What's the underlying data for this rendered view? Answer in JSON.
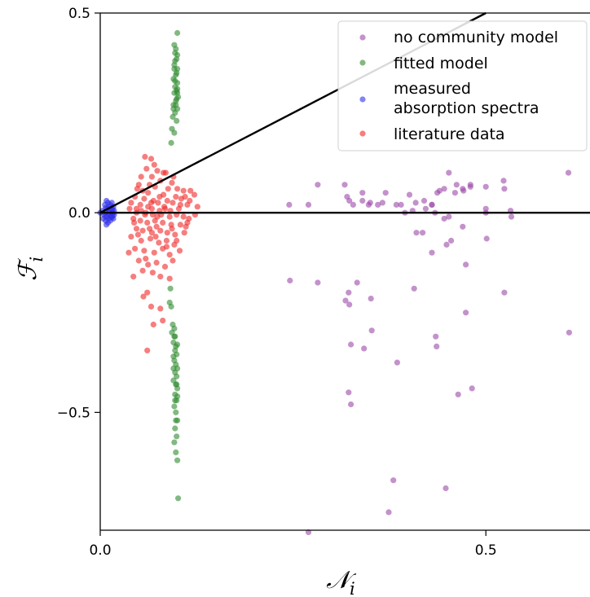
{
  "chart_data": {
    "type": "scatter",
    "title": "",
    "xlabel": "𝒩",
    "xlabel_sub": "i",
    "ylabel": "ℱ",
    "ylabel_sub": "i",
    "xlim": [
      0.0,
      0.635
    ],
    "ylim": [
      -0.795,
      0.5
    ],
    "xticks": [
      {
        "v": 0.0,
        "label": "0.0"
      },
      {
        "v": 0.5,
        "label": "0.5"
      }
    ],
    "yticks": [
      {
        "v": 0.5,
        "label": "0.5"
      },
      {
        "v": 0.0,
        "label": "0.0"
      },
      {
        "v": -0.5,
        "label": "−0.5"
      }
    ],
    "grid": false,
    "legend_position": "top-right",
    "reference_lines": [
      {
        "name": "zero-line",
        "points": [
          [
            0.0,
            0.0
          ],
          [
            0.635,
            0.0
          ]
        ]
      },
      {
        "name": "diagonal-line",
        "points": [
          [
            0.0,
            0.0
          ],
          [
            0.5,
            0.5
          ]
        ]
      }
    ],
    "series": [
      {
        "name": "no community model",
        "color": "#9b4aa8",
        "points": [
          [
            0.245,
            0.02
          ],
          [
            0.246,
            -0.17
          ],
          [
            0.27,
            -0.8
          ],
          [
            0.27,
            0.02
          ],
          [
            0.282,
            0.07
          ],
          [
            0.282,
            -0.175
          ],
          [
            0.317,
            0.07
          ],
          [
            0.318,
            -0.22
          ],
          [
            0.32,
            0.04
          ],
          [
            0.322,
            -0.2
          ],
          [
            0.323,
            0.03
          ],
          [
            0.323,
            -0.23
          ],
          [
            0.322,
            -0.45
          ],
          [
            0.325,
            -0.48
          ],
          [
            0.325,
            -0.33
          ],
          [
            0.328,
            0.02
          ],
          [
            0.333,
            -0.175
          ],
          [
            0.34,
            0.05
          ],
          [
            0.342,
            -0.34
          ],
          [
            0.348,
            0.02
          ],
          [
            0.35,
            0.025
          ],
          [
            0.351,
            -0.215
          ],
          [
            0.352,
            -0.295
          ],
          [
            0.37,
            0.05
          ],
          [
            0.374,
            -0.75
          ],
          [
            0.38,
            -0.67
          ],
          [
            0.384,
            0.02
          ],
          [
            0.385,
            -0.375
          ],
          [
            0.395,
            0.0
          ],
          [
            0.401,
            0.045
          ],
          [
            0.405,
            0.005
          ],
          [
            0.407,
            -0.19
          ],
          [
            0.409,
            0.025
          ],
          [
            0.41,
            -0.05
          ],
          [
            0.42,
            0.03
          ],
          [
            0.43,
            0.02
          ],
          [
            0.43,
            -0.1
          ],
          [
            0.418,
            -0.05
          ],
          [
            0.43,
            0.02
          ],
          [
            0.434,
            0.0
          ],
          [
            0.435,
            -0.31
          ],
          [
            0.436,
            -0.335
          ],
          [
            0.437,
            0.05
          ],
          [
            0.44,
            0.055
          ],
          [
            0.446,
            0.06
          ],
          [
            0.446,
            -0.015
          ],
          [
            0.448,
            -0.69
          ],
          [
            0.449,
            -0.08
          ],
          [
            0.452,
            0.1
          ],
          [
            0.455,
            -0.07
          ],
          [
            0.462,
            0.07
          ],
          [
            0.464,
            -0.455
          ],
          [
            0.47,
            0.06
          ],
          [
            0.471,
            0.055
          ],
          [
            0.47,
            -0.035
          ],
          [
            0.474,
            -0.13
          ],
          [
            0.474,
            -0.25
          ],
          [
            0.48,
            0.07
          ],
          [
            0.482,
            -0.44
          ],
          [
            0.5,
            0.065
          ],
          [
            0.5,
            0.0
          ],
          [
            0.501,
            -0.065
          ],
          [
            0.523,
            0.08
          ],
          [
            0.524,
            0.06
          ],
          [
            0.524,
            -0.2
          ],
          [
            0.532,
            0.005
          ],
          [
            0.533,
            -0.01
          ],
          [
            0.607,
            0.1
          ],
          [
            0.608,
            -0.3
          ],
          [
            0.39,
            0.02
          ],
          [
            0.366,
            0.025
          ],
          [
            0.422,
            0.01
          ],
          [
            0.36,
            0.02
          ],
          [
            0.34,
            0.03
          ],
          [
            0.452,
            -0.01
          ],
          [
            0.5,
            0.01
          ],
          [
            0.48,
            0.065
          ],
          [
            0.46,
            0.05
          ]
        ]
      },
      {
        "name": "fitted model",
        "color": "#2e8b2e",
        "points": [
          [
            0.1,
            0.45
          ],
          [
            0.098,
            0.41
          ],
          [
            0.097,
            0.4
          ],
          [
            0.099,
            0.385
          ],
          [
            0.096,
            0.37
          ],
          [
            0.1,
            0.36
          ],
          [
            0.098,
            0.345
          ],
          [
            0.095,
            0.335
          ],
          [
            0.1,
            0.325
          ],
          [
            0.097,
            0.315
          ],
          [
            0.099,
            0.305
          ],
          [
            0.096,
            0.3
          ],
          [
            0.101,
            0.29
          ],
          [
            0.098,
            0.28
          ],
          [
            0.095,
            0.27
          ],
          [
            0.1,
            0.26
          ],
          [
            0.097,
            0.25
          ],
          [
            0.094,
            0.24
          ],
          [
            0.099,
            0.23
          ],
          [
            0.093,
            0.21
          ],
          [
            0.096,
            0.2
          ],
          [
            0.092,
            0.175
          ],
          [
            0.097,
            0.33
          ],
          [
            0.099,
            0.35
          ],
          [
            0.1,
            0.31
          ],
          [
            0.096,
            0.36
          ],
          [
            0.1,
            0.395
          ],
          [
            0.096,
            0.42
          ],
          [
            0.097,
            0.38
          ],
          [
            0.1,
            0.3
          ],
          [
            0.098,
            0.27
          ],
          [
            0.095,
            0.26
          ],
          [
            0.099,
            0.285
          ],
          [
            0.091,
            -0.19
          ],
          [
            0.09,
            -0.225
          ],
          [
            0.092,
            -0.235
          ],
          [
            0.094,
            -0.28
          ],
          [
            0.096,
            -0.29
          ],
          [
            0.093,
            -0.3
          ],
          [
            0.097,
            -0.31
          ],
          [
            0.095,
            -0.325
          ],
          [
            0.098,
            -0.335
          ],
          [
            0.097,
            -0.345
          ],
          [
            0.099,
            -0.355
          ],
          [
            0.096,
            -0.37
          ],
          [
            0.098,
            -0.38
          ],
          [
            0.1,
            -0.39
          ],
          [
            0.097,
            -0.4
          ],
          [
            0.099,
            -0.41
          ],
          [
            0.095,
            -0.42
          ],
          [
            0.098,
            -0.43
          ],
          [
            0.1,
            -0.44
          ],
          [
            0.097,
            -0.455
          ],
          [
            0.099,
            -0.47
          ],
          [
            0.096,
            -0.485
          ],
          [
            0.098,
            -0.5
          ],
          [
            0.1,
            -0.52
          ],
          [
            0.097,
            -0.54
          ],
          [
            0.099,
            -0.56
          ],
          [
            0.096,
            -0.575
          ],
          [
            0.098,
            -0.6
          ],
          [
            0.1,
            -0.62
          ],
          [
            0.101,
            -0.715
          ],
          [
            0.095,
            -0.36
          ],
          [
            0.1,
            -0.33
          ],
          [
            0.097,
            -0.47
          ],
          [
            0.095,
            -0.39
          ],
          [
            0.1,
            -0.46
          ],
          [
            0.098,
            -0.52
          ],
          [
            0.096,
            -0.31
          ],
          [
            0.099,
            -0.43
          ]
        ]
      },
      {
        "name": "measured\nabsorption spectra",
        "color": "#3030e8",
        "points": [
          [
            0.0,
            0.0
          ],
          [
            0.003,
            0.005
          ],
          [
            0.005,
            -0.005
          ],
          [
            0.006,
            0.02
          ],
          [
            0.007,
            -0.02
          ],
          [
            0.008,
            0.03
          ],
          [
            0.008,
            -0.03
          ],
          [
            0.009,
            0.01
          ],
          [
            0.009,
            -0.01
          ],
          [
            0.01,
            0.025
          ],
          [
            0.01,
            -0.025
          ],
          [
            0.011,
            0.0
          ],
          [
            0.011,
            0.015
          ],
          [
            0.011,
            -0.015
          ],
          [
            0.012,
            0.005
          ],
          [
            0.012,
            -0.005
          ],
          [
            0.013,
            0.02
          ],
          [
            0.013,
            -0.02
          ],
          [
            0.014,
            0.01
          ],
          [
            0.014,
            -0.01
          ],
          [
            0.015,
            0.0
          ],
          [
            0.015,
            0.025
          ],
          [
            0.015,
            -0.012
          ],
          [
            0.016,
            0.008
          ],
          [
            0.016,
            -0.008
          ],
          [
            0.017,
            0.0
          ],
          [
            0.017,
            0.015
          ],
          [
            0.017,
            -0.015
          ],
          [
            0.018,
            0.005
          ],
          [
            0.018,
            -0.005
          ],
          [
            0.006,
            0.0
          ],
          [
            0.007,
            0.012
          ],
          [
            0.007,
            -0.01
          ],
          [
            0.004,
            -0.015
          ]
        ]
      },
      {
        "name": "literature data",
        "color": "#f02828",
        "points": [
          [
            0.058,
            0.14
          ],
          [
            0.066,
            0.135
          ],
          [
            0.07,
            0.12
          ],
          [
            0.074,
            0.105
          ],
          [
            0.085,
            0.1
          ],
          [
            0.06,
            0.11
          ],
          [
            0.053,
            0.09
          ],
          [
            0.082,
            0.1
          ],
          [
            0.067,
            0.09
          ],
          [
            0.093,
            0.075
          ],
          [
            0.078,
            0.08
          ],
          [
            0.064,
            0.07
          ],
          [
            0.05,
            0.07
          ],
          [
            0.071,
            0.065
          ],
          [
            0.088,
            0.06
          ],
          [
            0.1,
            0.06
          ],
          [
            0.108,
            0.055
          ],
          [
            0.117,
            0.055
          ],
          [
            0.122,
            0.045
          ],
          [
            0.11,
            0.04
          ],
          [
            0.098,
            0.04
          ],
          [
            0.082,
            0.045
          ],
          [
            0.062,
            0.05
          ],
          [
            0.045,
            0.04
          ],
          [
            0.057,
            0.035
          ],
          [
            0.069,
            0.03
          ],
          [
            0.075,
            0.025
          ],
          [
            0.087,
            0.03
          ],
          [
            0.094,
            0.025
          ],
          [
            0.104,
            0.02
          ],
          [
            0.113,
            0.02
          ],
          [
            0.126,
            0.015
          ],
          [
            0.052,
            0.02
          ],
          [
            0.04,
            0.025
          ],
          [
            0.047,
            0.01
          ],
          [
            0.062,
            0.015
          ],
          [
            0.067,
            0.01
          ],
          [
            0.077,
            0.005
          ],
          [
            0.084,
            0.01
          ],
          [
            0.091,
            0.005
          ],
          [
            0.047,
            0.0
          ],
          [
            0.053,
            0.005
          ],
          [
            0.058,
            -0.005
          ],
          [
            0.068,
            -0.005
          ],
          [
            0.079,
            -0.005
          ],
          [
            0.09,
            -0.01
          ],
          [
            0.099,
            -0.005
          ],
          [
            0.108,
            -0.01
          ],
          [
            0.115,
            -0.015
          ],
          [
            0.123,
            -0.005
          ],
          [
            0.043,
            -0.015
          ],
          [
            0.052,
            -0.02
          ],
          [
            0.061,
            -0.025
          ],
          [
            0.071,
            -0.02
          ],
          [
            0.081,
            -0.025
          ],
          [
            0.092,
            -0.03
          ],
          [
            0.104,
            -0.03
          ],
          [
            0.113,
            -0.025
          ],
          [
            0.047,
            -0.04
          ],
          [
            0.055,
            -0.045
          ],
          [
            0.067,
            -0.05
          ],
          [
            0.078,
            -0.045
          ],
          [
            0.087,
            -0.05
          ],
          [
            0.097,
            -0.055
          ],
          [
            0.109,
            -0.05
          ],
          [
            0.04,
            -0.06
          ],
          [
            0.053,
            -0.07
          ],
          [
            0.065,
            -0.065
          ],
          [
            0.076,
            -0.075
          ],
          [
            0.086,
            -0.07
          ],
          [
            0.096,
            -0.08
          ],
          [
            0.045,
            -0.09
          ],
          [
            0.057,
            -0.095
          ],
          [
            0.07,
            -0.1
          ],
          [
            0.081,
            -0.09
          ],
          [
            0.09,
            -0.105
          ],
          [
            0.103,
            -0.095
          ],
          [
            0.037,
            -0.1
          ],
          [
            0.05,
            -0.12
          ],
          [
            0.062,
            -0.13
          ],
          [
            0.073,
            -0.125
          ],
          [
            0.084,
            -0.135
          ],
          [
            0.094,
            -0.12
          ],
          [
            0.055,
            -0.145
          ],
          [
            0.068,
            -0.15
          ],
          [
            0.078,
            -0.16
          ],
          [
            0.09,
            -0.165
          ],
          [
            0.043,
            -0.16
          ],
          [
            0.061,
            -0.2
          ],
          [
            0.056,
            -0.21
          ],
          [
            0.066,
            -0.235
          ],
          [
            0.078,
            -0.24
          ],
          [
            0.081,
            -0.27
          ],
          [
            0.069,
            -0.28
          ],
          [
            0.061,
            -0.345
          ],
          [
            0.048,
            0.06
          ],
          [
            0.095,
            0.09
          ],
          [
            0.105,
            0.035
          ],
          [
            0.073,
            -0.035
          ],
          [
            0.059,
            0.0
          ],
          [
            0.066,
            0.025
          ],
          [
            0.074,
            -0.01
          ],
          [
            0.083,
            0.015
          ],
          [
            0.038,
            0.01
          ],
          [
            0.102,
            0.01
          ],
          [
            0.111,
            -0.035
          ],
          [
            0.116,
            0.03
          ],
          [
            0.086,
            -0.085
          ],
          [
            0.059,
            -0.115
          ],
          [
            0.049,
            -0.055
          ],
          [
            0.072,
            -0.06
          ],
          [
            0.064,
            -0.04
          ],
          [
            0.077,
            0.04
          ],
          [
            0.093,
            -0.04
          ],
          [
            0.055,
            0.055
          ],
          [
            0.099,
            -0.07
          ],
          [
            0.044,
            -0.025
          ]
        ]
      }
    ]
  }
}
